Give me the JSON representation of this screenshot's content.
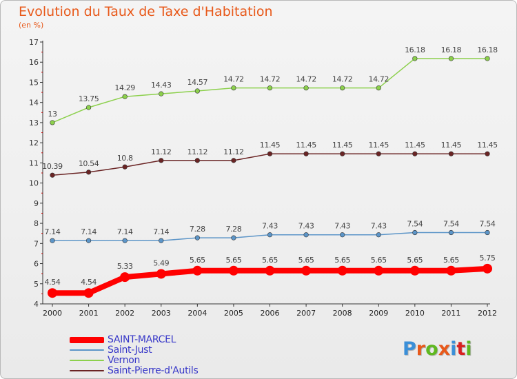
{
  "title": "Evolution du Taux de Taxe d'Habitation",
  "unit": "(en %)",
  "brand": "Proxiti",
  "brand_colors": [
    "#3a8fd8",
    "#e8591a",
    "#5fb820",
    "#e8591a",
    "#3a8fd8",
    "#d82020",
    "#5fb820"
  ],
  "chart_data": {
    "type": "line",
    "x": [
      "2000",
      "2001",
      "2002",
      "2003",
      "2004",
      "2005",
      "2006",
      "2007",
      "2008",
      "2009",
      "2010",
      "2011",
      "2012"
    ],
    "ylim": [
      4,
      17
    ],
    "yticks": [
      "4",
      "5",
      "6",
      "7",
      "8",
      "9",
      "10",
      "11",
      "12",
      "13",
      "14",
      "15",
      "16",
      "17"
    ],
    "legend_position": "bottom-left",
    "grid": false,
    "series": [
      {
        "name": "SAINT-MARCEL",
        "color": "#ff0000",
        "bold": true,
        "values": [
          4.54,
          4.54,
          5.33,
          5.49,
          5.65,
          5.65,
          5.65,
          5.65,
          5.65,
          5.65,
          5.65,
          5.65,
          5.75
        ],
        "labels": [
          "4.54",
          "4.54",
          "5.33",
          "5.49",
          "5.65",
          "5.65",
          "5.65",
          "5.65",
          "5.65",
          "5.65",
          "5.65",
          "5.65",
          "5.75"
        ]
      },
      {
        "name": "Saint-Just",
        "color": "#5c95c8",
        "bold": false,
        "values": [
          7.14,
          7.14,
          7.14,
          7.14,
          7.28,
          7.28,
          7.43,
          7.43,
          7.43,
          7.43,
          7.54,
          7.54,
          7.54
        ],
        "labels": [
          "7.14",
          "7.14",
          "7.14",
          "7.14",
          "7.28",
          "7.28",
          "7.43",
          "7.43",
          "7.43",
          "7.43",
          "7.54",
          "7.54",
          "7.54"
        ]
      },
      {
        "name": "Vernon",
        "color": "#8cd04c",
        "bold": false,
        "values": [
          13,
          13.75,
          14.29,
          14.43,
          14.57,
          14.72,
          14.72,
          14.72,
          14.72,
          14.72,
          16.18,
          16.18,
          16.18
        ],
        "labels": [
          "13",
          "13.75",
          "14.29",
          "14.43",
          "14.57",
          "14.72",
          "14.72",
          "14.72",
          "14.72",
          "14.72",
          "16.18",
          "16.18",
          "16.18"
        ]
      },
      {
        "name": "Saint-Pierre-d'Autils",
        "color": "#6a2424",
        "bold": false,
        "values": [
          10.39,
          10.54,
          10.8,
          11.12,
          11.12,
          11.12,
          11.45,
          11.45,
          11.45,
          11.45,
          11.45,
          11.45,
          11.45
        ],
        "labels": [
          "10.39",
          "10.54",
          "10.8",
          "11.12",
          "11.12",
          "11.12",
          "11.45",
          "11.45",
          "11.45",
          "11.45",
          "11.45",
          "11.45",
          "11.45"
        ]
      }
    ]
  }
}
